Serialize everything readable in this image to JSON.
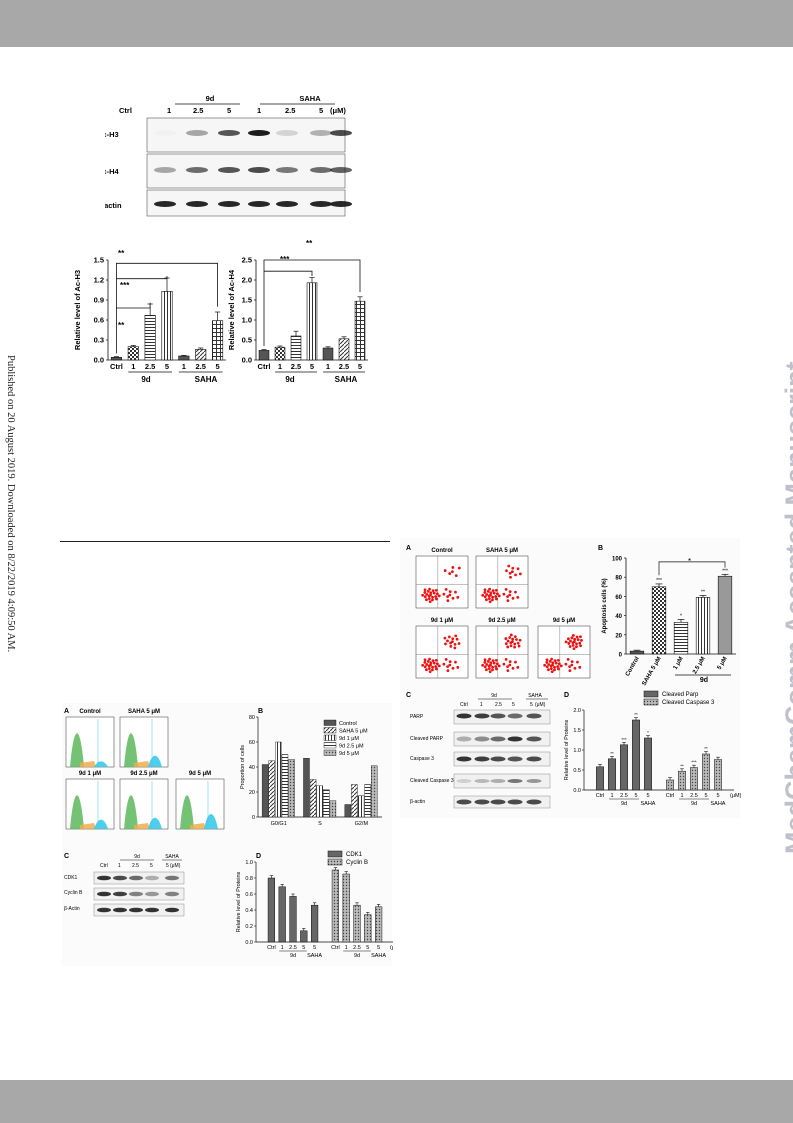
{
  "side_note": "Published on 20 August 2019. Downloaded on 8/22/2019 4:09:50 AM.",
  "watermark": "MedChemComm Accepted Manuscript",
  "fig_acetylation": {
    "blot": {
      "header_groups": [
        "9d",
        "SAHA"
      ],
      "lanes": [
        "Ctrl",
        "1",
        "2.5",
        "5",
        "1",
        "2.5",
        "5"
      ],
      "unit": "(μM)",
      "rows": [
        "Ac-H3",
        "Ac-H4",
        "β-actin"
      ]
    },
    "sig": {
      "s1": "**",
      "s2": "***",
      "s3": "**"
    },
    "group_9d": "9d",
    "group_saha": "SAHA"
  },
  "fig_apoptosis": {
    "panels": {
      "a": "A",
      "b": "B",
      "c": "C",
      "d": "D"
    },
    "flow_titles": [
      "Control",
      "SAHA 5 μM",
      "9d 1 μM",
      "9d 2.5 μM",
      "9d 5 μM"
    ],
    "blot": {
      "header_groups": [
        "9d",
        "SAHA"
      ],
      "lanes": [
        "Ctrl",
        "1",
        "2.5",
        "5",
        "5"
      ],
      "unit": "(μM)",
      "rows": [
        "PARP",
        "Cleaved PARP",
        "Caspase 3",
        "Cleaved Caspase 3",
        "β-actin"
      ]
    },
    "group_9d": "9d",
    "star": "*"
  },
  "fig_cellcycle": {
    "panels": {
      "a": "A",
      "b": "B",
      "c": "C",
      "d": "D"
    },
    "flow_titles": [
      "Control",
      "SAHA 5 μM",
      "9d 1 μM",
      "9d 2.5 μM",
      "9d 5 μM"
    ],
    "blot": {
      "header_groups": [
        "9d",
        "SAHA"
      ],
      "lanes": [
        "Ctrl",
        "1",
        "2.5",
        "5",
        "5"
      ],
      "unit": "(μM)",
      "rows": [
        "CDK1",
        "Cyclin B",
        "β-Actin"
      ]
    }
  },
  "chart_data": [
    {
      "type": "bar",
      "ylabel": "Relative level of Ac-H3",
      "categories": [
        "Ctrl",
        "1",
        "2.5",
        "5",
        "1",
        "2.5",
        "5"
      ],
      "values": [
        0.04,
        0.2,
        0.67,
        1.03,
        0.06,
        0.16,
        0.59
      ],
      "errors": [
        0.01,
        0.02,
        0.17,
        0.2,
        0.01,
        0.02,
        0.13
      ],
      "ylim": [
        0,
        1.5
      ],
      "yticks": [
        "0.0",
        "0.3",
        "0.6",
        "0.9",
        "1.2",
        "1.5"
      ],
      "groups": [
        "9d",
        "SAHA"
      ]
    },
    {
      "type": "bar",
      "ylabel": "Relative level of Ac-H4",
      "categories": [
        "Ctrl",
        "1",
        "2.5",
        "5",
        "1",
        "2.5",
        "5"
      ],
      "values": [
        0.24,
        0.32,
        0.6,
        1.93,
        0.3,
        0.53,
        1.47
      ],
      "errors": [
        0.02,
        0.03,
        0.12,
        0.13,
        0.03,
        0.05,
        0.11
      ],
      "ylim": [
        0,
        2.5
      ],
      "yticks": [
        "0.0",
        "0.5",
        "1.0",
        "1.5",
        "2.0",
        "2.5"
      ],
      "groups": [
        "9d",
        "SAHA"
      ]
    },
    {
      "type": "bar",
      "ylabel": "Apoptosis cells (%)",
      "categories": [
        "Control",
        "SAHA 5 μM",
        "1 μM",
        "2.5 μM",
        "5 μM"
      ],
      "values": [
        3,
        70,
        33,
        59,
        81
      ],
      "errors": [
        1,
        3,
        3,
        2,
        2
      ],
      "ylim": [
        0,
        100
      ],
      "yticks": [
        "0",
        "20",
        "40",
        "60",
        "80",
        "100"
      ],
      "annotations": [
        "***",
        "*",
        "**",
        "***"
      ],
      "group_label": "9d"
    },
    {
      "type": "bar",
      "ylabel": "Relative level of Proteins",
      "categories": [
        "Ctrl",
        "1",
        "2.5",
        "5",
        "5"
      ],
      "series": [
        {
          "name": "Cleaved Parp",
          "values": [
            0.58,
            0.78,
            1.13,
            1.75,
            1.3
          ]
        },
        {
          "name": "Cleaved Caspase 3",
          "values": [
            0.25,
            0.47,
            0.56,
            0.9,
            0.76
          ]
        }
      ],
      "ylim": [
        0,
        2.0
      ],
      "yticks": [
        "0.0",
        "0.5",
        "1.0",
        "1.5",
        "2.0"
      ],
      "annotations": [
        "**",
        "***",
        "**",
        "*",
        "**",
        "***",
        "**"
      ],
      "groups": [
        "9d",
        "SAHA"
      ],
      "unit": "(μM)"
    },
    {
      "type": "bar",
      "ylabel": "Proportion of cells",
      "categories": [
        "G0/G1",
        "S",
        "G2/M"
      ],
      "series": [
        {
          "name": "Control",
          "values": [
            42,
            47,
            10
          ]
        },
        {
          "name": "SAHA 5 μM",
          "values": [
            45,
            30,
            26
          ]
        },
        {
          "name": "9d 1 μM",
          "values": [
            60,
            25,
            17
          ]
        },
        {
          "name": "9d 2.5 μM",
          "values": [
            50,
            22,
            26
          ]
        },
        {
          "name": "9d 5 μM",
          "values": [
            46,
            13,
            41
          ]
        }
      ],
      "ylim": [
        0,
        80
      ],
      "yticks": [
        "0",
        "20",
        "40",
        "60",
        "80"
      ]
    },
    {
      "type": "bar",
      "ylabel": "Relative level of Proteins",
      "categories": [
        "Ctrl",
        "1",
        "2.5",
        "5",
        "5"
      ],
      "series": [
        {
          "name": "CDK1",
          "values": [
            0.8,
            0.69,
            0.57,
            0.14,
            0.46
          ]
        },
        {
          "name": "Cyclin B",
          "values": [
            0.9,
            0.85,
            0.46,
            0.34,
            0.44
          ]
        }
      ],
      "ylim": [
        0,
        1.0
      ],
      "yticks": [
        "0.0",
        "0.2",
        "0.4",
        "0.6",
        "0.8",
        "1.0"
      ],
      "groups": [
        "9d",
        "SAHA"
      ],
      "unit": "(μM)"
    }
  ]
}
